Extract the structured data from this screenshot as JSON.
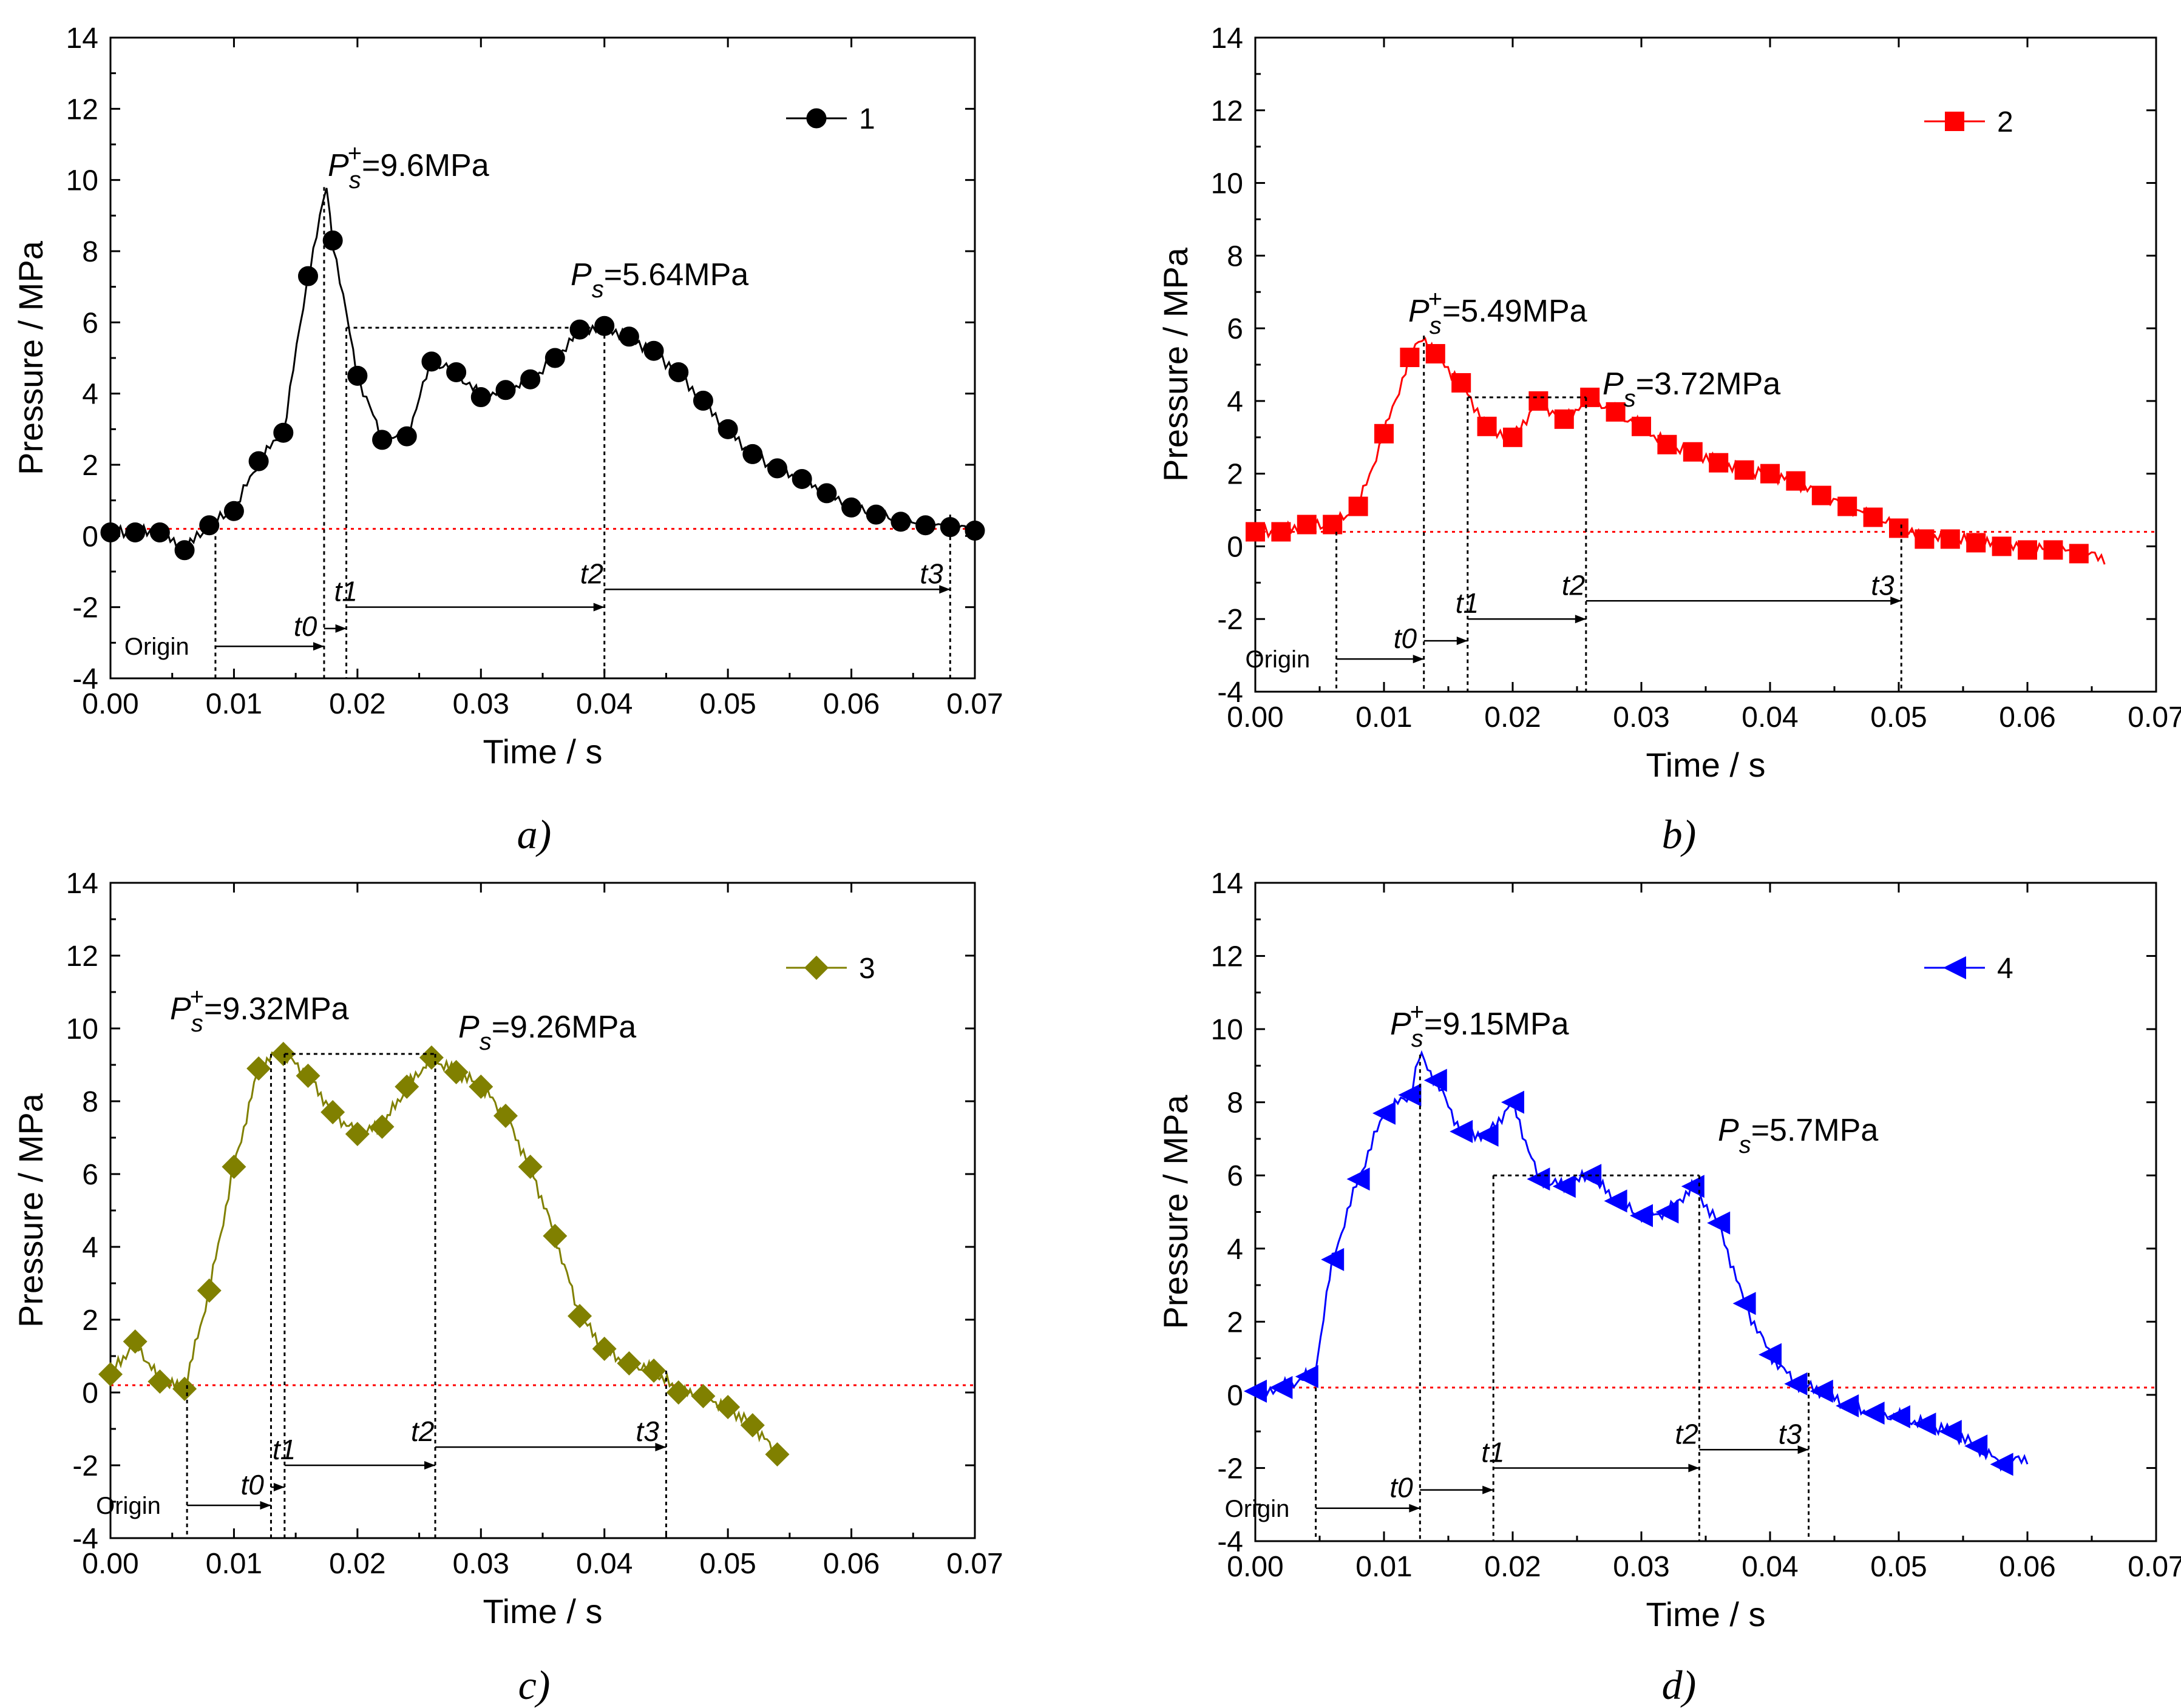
{
  "chart_data": [
    {
      "type": "line",
      "panel": "a)",
      "xlabel": "Time / s",
      "ylabel": "Pressure / MPa",
      "xlim": [
        0,
        0.07
      ],
      "ylim": [
        -4,
        14
      ],
      "xticks": [
        "0.00",
        "0.01",
        "0.02",
        "0.03",
        "0.04",
        "0.05",
        "0.06",
        "0.07"
      ],
      "yticks": [
        "-4",
        "-2",
        "0",
        "2",
        "4",
        "6",
        "8",
        "10",
        "12",
        "14"
      ],
      "color": "#000000",
      "marker": "circle",
      "legend": "1",
      "baseline_y": 0.2,
      "series": {
        "name": "1",
        "x": [
          0,
          0.002,
          0.004,
          0.006,
          0.008,
          0.01,
          0.012,
          0.014,
          0.016,
          0.0175,
          0.018,
          0.02,
          0.022,
          0.024,
          0.026,
          0.028,
          0.03,
          0.032,
          0.034,
          0.036,
          0.038,
          0.04,
          0.042,
          0.044,
          0.046,
          0.048,
          0.05,
          0.052,
          0.054,
          0.056,
          0.058,
          0.06,
          0.062,
          0.064,
          0.066,
          0.068,
          0.07
        ],
        "y": [
          0.1,
          0.1,
          0.1,
          -0.4,
          0.3,
          0.7,
          2.1,
          2.9,
          7.3,
          9.8,
          8.3,
          4.5,
          2.7,
          2.8,
          4.9,
          4.6,
          3.9,
          4.1,
          4.4,
          5.0,
          5.8,
          5.9,
          5.6,
          5.2,
          4.6,
          3.8,
          3.0,
          2.3,
          1.9,
          1.6,
          1.2,
          0.8,
          0.6,
          0.4,
          0.3,
          0.25,
          0.15
        ],
        "marker_x": [
          0,
          0.002,
          0.004,
          0.006,
          0.008,
          0.01,
          0.012,
          0.014,
          0.016,
          0.018,
          0.02,
          0.022,
          0.024,
          0.026,
          0.028,
          0.03,
          0.032,
          0.034,
          0.036,
          0.038,
          0.04,
          0.042,
          0.044,
          0.046,
          0.048,
          0.05,
          0.052,
          0.054,
          0.056,
          0.058,
          0.06,
          0.062,
          0.064,
          0.066,
          0.068,
          0.07
        ]
      },
      "annotations": {
        "peak_label": "=9.6MPa",
        "ps_label": "=5.64MPa",
        "origin": "Origin",
        "t0": "t0",
        "t1": "t1",
        "t2": "t2",
        "t3": "t3"
      },
      "markers_v": {
        "origin": 0.0085,
        "t0": 0.0173,
        "t1": 0.0191,
        "t2": 0.04,
        "t3": 0.068
      },
      "peak": {
        "x": 0.0173,
        "y": 9.8
      },
      "ps": {
        "x1": 0.0191,
        "x2": 0.04,
        "y": 5.85
      }
    },
    {
      "type": "line",
      "panel": "b)",
      "xlabel": "Time / s",
      "ylabel": "Pressure / MPa",
      "xlim": [
        0,
        0.07
      ],
      "ylim": [
        -4,
        14
      ],
      "xticks": [
        "0.00",
        "0.01",
        "0.02",
        "0.03",
        "0.04",
        "0.05",
        "0.06",
        "0.07"
      ],
      "yticks": [
        "-4",
        "-2",
        "0",
        "2",
        "4",
        "6",
        "8",
        "10",
        "12",
        "14"
      ],
      "color": "#ff0000",
      "marker": "square",
      "legend": "2",
      "baseline_y": 0.4,
      "series": {
        "name": "2",
        "x": [
          0,
          0.002,
          0.004,
          0.006,
          0.008,
          0.01,
          0.012,
          0.013,
          0.014,
          0.016,
          0.018,
          0.02,
          0.022,
          0.024,
          0.026,
          0.028,
          0.03,
          0.032,
          0.034,
          0.036,
          0.038,
          0.04,
          0.042,
          0.044,
          0.046,
          0.048,
          0.05,
          0.052,
          0.054,
          0.056,
          0.058,
          0.06,
          0.062,
          0.064,
          0.066
        ],
        "y": [
          0.4,
          0.4,
          0.6,
          0.6,
          1.1,
          3.1,
          5.2,
          5.8,
          5.3,
          4.5,
          3.3,
          3.0,
          4.0,
          3.5,
          4.1,
          3.7,
          3.3,
          2.8,
          2.6,
          2.3,
          2.1,
          2.0,
          1.8,
          1.4,
          1.1,
          0.8,
          0.5,
          0.2,
          0.2,
          0.1,
          0.0,
          -0.1,
          -0.1,
          -0.2,
          -0.3
        ],
        "marker_x": [
          0,
          0.002,
          0.004,
          0.006,
          0.008,
          0.01,
          0.012,
          0.014,
          0.016,
          0.018,
          0.02,
          0.022,
          0.024,
          0.026,
          0.028,
          0.03,
          0.032,
          0.034,
          0.036,
          0.038,
          0.04,
          0.042,
          0.044,
          0.046,
          0.048,
          0.05,
          0.052,
          0.054,
          0.056,
          0.058,
          0.06,
          0.062,
          0.064
        ]
      },
      "annotations": {
        "peak_label": "=5.49MPa",
        "ps_label": "=3.72MPa",
        "origin": "Origin",
        "t0": "t0",
        "t1": "t1",
        "t2": "t2",
        "t3": "t3"
      },
      "markers_v": {
        "origin": 0.0063,
        "t0": 0.0131,
        "t1": 0.0165,
        "t2": 0.0257,
        "t3": 0.0502
      },
      "peak": {
        "x": 0.0131,
        "y": 5.8
      },
      "ps": {
        "x1": 0.0165,
        "x2": 0.0257,
        "y": 4.1
      }
    },
    {
      "type": "line",
      "panel": "c)",
      "xlabel": "Time / s",
      "ylabel": "Pressure / MPa",
      "xlim": [
        0,
        0.07
      ],
      "ylim": [
        -4,
        14
      ],
      "xticks": [
        "0.00",
        "0.01",
        "0.02",
        "0.03",
        "0.04",
        "0.05",
        "0.06",
        "0.07"
      ],
      "yticks": [
        "-4",
        "-2",
        "0",
        "2",
        "4",
        "6",
        "8",
        "10",
        "12",
        "14"
      ],
      "color": "#808000",
      "marker": "diamond",
      "legend": "3",
      "baseline_y": 0.2,
      "series": {
        "name": "3",
        "x": [
          0,
          0.002,
          0.004,
          0.006,
          0.008,
          0.01,
          0.012,
          0.013,
          0.014,
          0.016,
          0.018,
          0.02,
          0.022,
          0.024,
          0.026,
          0.028,
          0.03,
          0.032,
          0.034,
          0.036,
          0.038,
          0.04,
          0.042,
          0.044,
          0.046,
          0.048,
          0.05,
          0.052,
          0.054
        ],
        "y": [
          0.5,
          1.4,
          0.3,
          0.1,
          2.8,
          6.2,
          8.9,
          9.2,
          9.3,
          8.7,
          7.7,
          7.1,
          7.3,
          8.4,
          9.2,
          8.8,
          8.4,
          7.6,
          6.2,
          4.3,
          2.1,
          1.2,
          0.8,
          0.6,
          0.0,
          -0.1,
          -0.4,
          -0.9,
          -1.7
        ],
        "marker_x": [
          0,
          0.002,
          0.004,
          0.006,
          0.008,
          0.01,
          0.012,
          0.014,
          0.016,
          0.018,
          0.02,
          0.022,
          0.024,
          0.026,
          0.028,
          0.03,
          0.032,
          0.034,
          0.036,
          0.038,
          0.04,
          0.042,
          0.044,
          0.046,
          0.048,
          0.05,
          0.052,
          0.054
        ]
      },
      "annotations": {
        "peak_label": "=9.32MPa",
        "ps_label": "=9.26MPa",
        "origin": "Origin",
        "t0": "t0",
        "t1": "t1",
        "t2": "t2",
        "t3": "t3"
      },
      "markers_v": {
        "origin": 0.0062,
        "t0": 0.013,
        "t1": 0.0141,
        "t2": 0.0263,
        "t3": 0.045
      },
      "peak": {
        "x": 0.013,
        "y": 9.3
      },
      "ps": {
        "x1": 0.0141,
        "x2": 0.0263,
        "y": 9.3
      }
    },
    {
      "type": "line",
      "panel": "d)",
      "xlabel": "Time / s",
      "ylabel": "Pressure / MPa",
      "xlim": [
        0,
        0.07
      ],
      "ylim": [
        -4,
        14
      ],
      "xticks": [
        "0.00",
        "0.01",
        "0.02",
        "0.03",
        "0.04",
        "0.05",
        "0.06",
        "0.07"
      ],
      "yticks": [
        "-4",
        "-2",
        "0",
        "2",
        "4",
        "6",
        "8",
        "10",
        "12",
        "14"
      ],
      "color": "#0000ff",
      "marker": "triangle-left",
      "legend": "4",
      "baseline_y": 0.2,
      "series": {
        "name": "4",
        "x": [
          0,
          0.002,
          0.004,
          0.0045,
          0.006,
          0.008,
          0.01,
          0.012,
          0.0128,
          0.014,
          0.016,
          0.018,
          0.02,
          0.022,
          0.024,
          0.026,
          0.028,
          0.03,
          0.032,
          0.034,
          0.036,
          0.038,
          0.04,
          0.042,
          0.044,
          0.046,
          0.048,
          0.05,
          0.052,
          0.054,
          0.056,
          0.058,
          0.06
        ],
        "y": [
          0.1,
          0.2,
          0.5,
          0.3,
          3.7,
          5.9,
          7.7,
          8.2,
          9.3,
          8.6,
          7.2,
          7.1,
          8.0,
          5.9,
          5.7,
          6.0,
          5.3,
          4.9,
          5.0,
          5.7,
          4.7,
          2.5,
          1.1,
          0.3,
          0.1,
          -0.3,
          -0.5,
          -0.6,
          -0.8,
          -1.0,
          -1.4,
          -1.9,
          -1.7
        ],
        "marker_x": [
          0,
          0.002,
          0.004,
          0.006,
          0.008,
          0.01,
          0.012,
          0.014,
          0.016,
          0.018,
          0.02,
          0.022,
          0.024,
          0.026,
          0.028,
          0.03,
          0.032,
          0.034,
          0.036,
          0.038,
          0.04,
          0.042,
          0.044,
          0.046,
          0.048,
          0.05,
          0.052,
          0.054,
          0.056,
          0.058
        ]
      },
      "annotations": {
        "peak_label": "=9.15MPa",
        "ps_label": "=5.7MPa",
        "origin": "Origin",
        "t0": "t0",
        "t1": "t1",
        "t2": "t2",
        "t3": "t3"
      },
      "markers_v": {
        "origin": 0.0047,
        "t0": 0.0128,
        "t1": 0.0185,
        "t2": 0.0345,
        "t3": 0.043
      },
      "peak": {
        "x": 0.0128,
        "y": 9.3
      },
      "ps": {
        "x1": 0.0185,
        "x2": 0.0345,
        "y": 6.0
      }
    }
  ],
  "symbols": {
    "P": "P",
    "s": "s",
    "plus": "+"
  },
  "colors": {
    "baseline": "#ff0000",
    "axis": "#000000"
  }
}
